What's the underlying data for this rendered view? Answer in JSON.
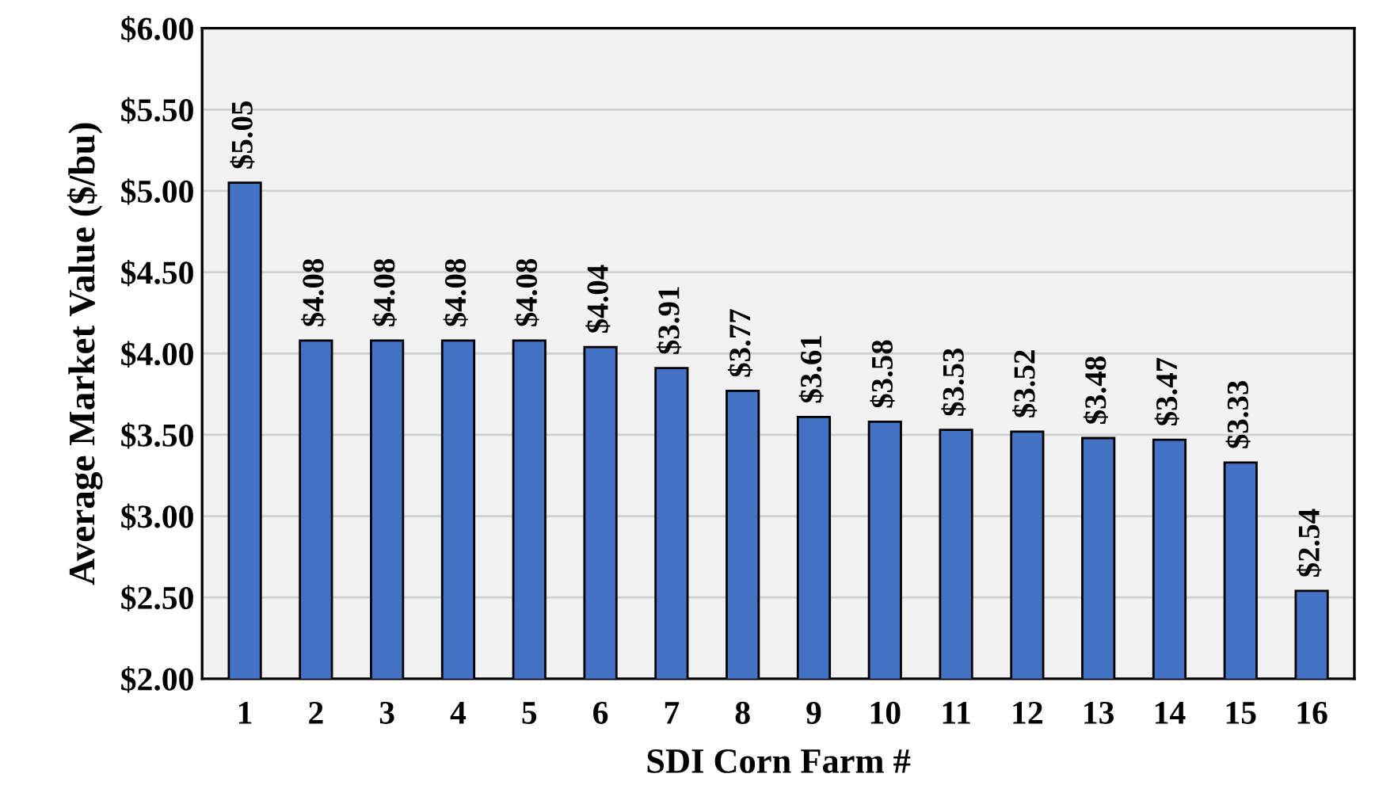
{
  "chart_data": {
    "type": "bar",
    "xlabel": "SDI Corn Farm #",
    "ylabel": "Average Market Value ($/bu)",
    "categories": [
      "1",
      "2",
      "3",
      "4",
      "5",
      "6",
      "7",
      "8",
      "9",
      "10",
      "11",
      "12",
      "13",
      "14",
      "15",
      "16"
    ],
    "values": [
      5.05,
      4.08,
      4.08,
      4.08,
      4.08,
      4.04,
      3.91,
      3.77,
      3.61,
      3.58,
      3.53,
      3.52,
      3.48,
      3.47,
      3.33,
      2.54
    ],
    "value_labels": [
      "$5.05",
      "$4.08",
      "$4.08",
      "$4.08",
      "$4.08",
      "$4.04",
      "$3.91",
      "$3.77",
      "$3.61",
      "$3.58",
      "$3.53",
      "$3.52",
      "$3.48",
      "$3.47",
      "$3.33",
      "$2.54"
    ],
    "color": "#4472c4",
    "ylim": [
      2,
      6
    ],
    "yticks": [
      {
        "value": 2,
        "label": "$2.00"
      },
      {
        "value": 2.5,
        "label": "$2.50"
      },
      {
        "value": 3,
        "label": "$3.00"
      },
      {
        "value": 3.5,
        "label": "$3.50"
      },
      {
        "value": 4,
        "label": "$4.00"
      },
      {
        "value": 4.5,
        "label": "$4.50"
      },
      {
        "value": 5,
        "label": "$5.00"
      },
      {
        "value": 5.5,
        "label": "$5.50"
      },
      {
        "value": 6,
        "label": "$6.00"
      }
    ],
    "grid": "y"
  }
}
